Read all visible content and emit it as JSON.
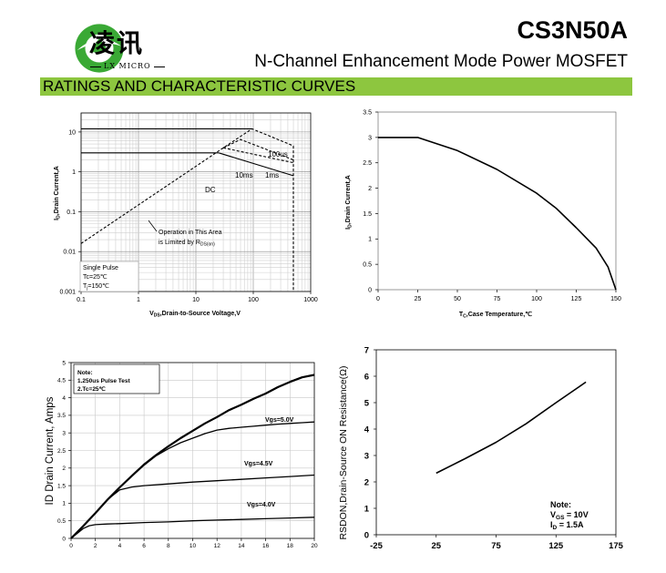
{
  "header": {
    "brand_cn": "凌讯",
    "brand_en": "LX MICRO",
    "part_number": "CS3N50A",
    "subtitle": "N-Channel Enhancement Mode Power MOSFET",
    "section": "RATINGS AND CHARACTERISTIC CURVES",
    "colors": {
      "band": "#8dc63f",
      "logo": "#3aa935"
    },
    "logo_icon": "lx-micro-logo-icon"
  },
  "chart_data": [
    {
      "type": "line",
      "id": "soa",
      "scale": "log-log",
      "ylabel": "I",
      "ylabel_sub": "D",
      "ylabel_rest": ",Drain Current,A",
      "xlabel": "V",
      "xlabel_sub": "DS",
      "xlabel_rest": ",Drain-to-Source Voltage,V",
      "xlim": [
        0.1,
        1000
      ],
      "ylim": [
        0.001,
        30
      ],
      "x_ticks": [
        "0.1",
        "1",
        "10",
        "100",
        "1000"
      ],
      "y_ticks": [
        "0.001",
        "0.01",
        "0.1",
        "1",
        "10"
      ],
      "grid": true,
      "series": [
        {
          "name": "100us",
          "x": [
            0.1,
            30,
            95,
            500,
            500
          ],
          "y": [
            0.016,
            4.0,
            12,
            4.5,
            0.001
          ],
          "dash": true
        },
        {
          "name": "1ms",
          "x": [
            30,
            60,
            500
          ],
          "y": [
            4.0,
            6.5,
            2.0
          ],
          "dash": true
        },
        {
          "name": "10ms",
          "x": [
            30,
            500
          ],
          "y": [
            4.0,
            1.7
          ],
          "dash": true
        },
        {
          "name": "DC",
          "x": [
            25,
            500
          ],
          "y": [
            3.0,
            0.8
          ]
        },
        {
          "name": "",
          "x": [
            0.1,
            95
          ],
          "y": [
            12,
            12
          ]
        },
        {
          "name": "",
          "x": [
            0.1,
            25
          ],
          "y": [
            3,
            3
          ]
        }
      ],
      "annotations": {
        "us100": "100us",
        "ms1": "1ms",
        "ms10": "10ms",
        "dc": "DC",
        "operation_line1": "Operation in This Area",
        "operation_line2": "is Limited by R",
        "operation_sub": "DS(on)",
        "legend_line1": "Single Pulse",
        "legend_line2": "Tc=25℃",
        "legend_line3_a": "T",
        "legend_line3_sub": "j",
        "legend_line3_b": "=150℃"
      }
    },
    {
      "type": "line",
      "id": "derating",
      "ylabel": "I",
      "ylabel_sub": "D",
      "ylabel_rest": ",Drain Current,A",
      "xlabel": "T",
      "xlabel_sub": "C",
      "xlabel_rest": ",Case Temperature,℃",
      "xlim": [
        0,
        150
      ],
      "ylim": [
        0,
        3.5
      ],
      "x_ticks": [
        "0",
        "25",
        "50",
        "75",
        "100",
        "125",
        "150"
      ],
      "y_ticks": [
        "0",
        "0.5",
        "1",
        "1.5",
        "2",
        "2.5",
        "3",
        "3.5"
      ],
      "grid": false,
      "series": [
        {
          "name": "",
          "x": [
            0,
            25,
            50,
            75,
            100,
            112.5,
            125,
            137.5,
            145,
            150
          ],
          "y": [
            3.0,
            3.0,
            2.74,
            2.37,
            1.9,
            1.6,
            1.22,
            0.82,
            0.45,
            0.0
          ]
        }
      ]
    },
    {
      "type": "line",
      "id": "output",
      "ylabel": "ID Drain Current, Amps",
      "xlim": [
        0,
        20
      ],
      "ylim": [
        0,
        5
      ],
      "x_ticks": [
        "0",
        "2",
        "4",
        "6",
        "8",
        "10",
        "12",
        "14",
        "16",
        "18",
        "20"
      ],
      "y_ticks": [
        "0",
        "0.5",
        "1",
        "1.5",
        "2",
        "2.5",
        "3",
        "3.5",
        "4",
        "4.5",
        "5"
      ],
      "grid": true,
      "note_title": "Note:",
      "note_line1": "1.250us Pulse Test",
      "note_line2": "2.Tc=25℃",
      "series": [
        {
          "name": "",
          "bold": true,
          "x": [
            0,
            1,
            2,
            3,
            4,
            5,
            6,
            7,
            8,
            9,
            10,
            11,
            12,
            13,
            14,
            15,
            16,
            17,
            18,
            19,
            20
          ],
          "y": [
            0,
            0.35,
            0.72,
            1.1,
            1.45,
            1.78,
            2.1,
            2.37,
            2.62,
            2.85,
            3.06,
            3.27,
            3.45,
            3.65,
            3.8,
            3.97,
            4.12,
            4.3,
            4.45,
            4.58,
            4.65
          ]
        },
        {
          "name": "Vgs=5.0V",
          "x": [
            0,
            1,
            2,
            3,
            4,
            5,
            6,
            7,
            8,
            9,
            10,
            11,
            12,
            13,
            14,
            15,
            16,
            17,
            18,
            19,
            20
          ],
          "y": [
            0,
            0.35,
            0.72,
            1.1,
            1.45,
            1.78,
            2.08,
            2.35,
            2.55,
            2.72,
            2.85,
            2.98,
            3.08,
            3.13,
            3.16,
            3.19,
            3.22,
            3.25,
            3.27,
            3.29,
            3.31
          ]
        },
        {
          "name": "Vgs=4.5V",
          "x": [
            0,
            1,
            2,
            3,
            4,
            5,
            6,
            8,
            10,
            12,
            14,
            16,
            18,
            20
          ],
          "y": [
            0,
            0.35,
            0.72,
            1.1,
            1.38,
            1.46,
            1.5,
            1.55,
            1.6,
            1.64,
            1.68,
            1.72,
            1.76,
            1.8
          ]
        },
        {
          "name": "Vgs=4.0V",
          "x": [
            0,
            1,
            1.5,
            2,
            3,
            4,
            6,
            8,
            10,
            12,
            14,
            16,
            18,
            20
          ],
          "y": [
            0,
            0.28,
            0.36,
            0.39,
            0.41,
            0.42,
            0.45,
            0.47,
            0.5,
            0.52,
            0.54,
            0.56,
            0.58,
            0.6
          ]
        }
      ]
    },
    {
      "type": "line",
      "id": "rdson",
      "ylabel": "RSDON,Drain-Source ON Resistance(Ω)",
      "xlim": [
        -25,
        175
      ],
      "ylim": [
        0,
        7
      ],
      "x_ticks": [
        "-25",
        "25",
        "75",
        "125",
        "175"
      ],
      "y_ticks": [
        "0",
        "1",
        "2",
        "3",
        "4",
        "5",
        "6",
        "7"
      ],
      "grid": false,
      "note_title": "Note:",
      "note_vgs_a": "V",
      "note_vgs_sub": "GS",
      "note_vgs_b": " = 10V",
      "note_id_a": "I",
      "note_id_sub": "D",
      "note_id_b": " = 1.5A",
      "series": [
        {
          "name": "",
          "x": [
            25,
            50,
            75,
            100,
            125,
            150
          ],
          "y": [
            2.33,
            2.9,
            3.5,
            4.2,
            5.0,
            5.78
          ]
        }
      ]
    }
  ]
}
